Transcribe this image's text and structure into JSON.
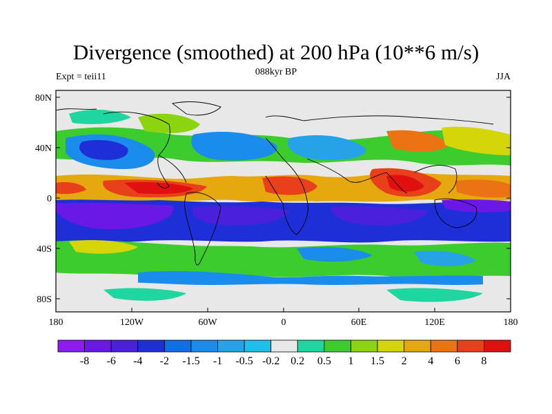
{
  "title": "Divergence (smoothed) at 200 hPa (10**6 m/s)",
  "left_label": "Expt = teii11",
  "center_label": "088kyr BP",
  "right_label": "JJA",
  "axes": {
    "lat_ticks": [
      "80N",
      "40N",
      "0",
      "40S",
      "80S"
    ],
    "lon_ticks": [
      "180",
      "120W",
      "60W",
      "0",
      "60E",
      "120E",
      "180"
    ]
  },
  "colorbar": {
    "labels": [
      "-8",
      "-6",
      "-4",
      "-2",
      "-1.5",
      "-1",
      "-0.5",
      "-0.2",
      "0.2",
      "0.5",
      "1",
      "1.5",
      "2",
      "4",
      "6",
      "8"
    ],
    "colors": [
      "#8C1CF2",
      "#6A18E6",
      "#4A20DC",
      "#1E2FD8",
      "#0F6FE8",
      "#1A8CEB",
      "#26A3E6",
      "#1FBFEB",
      "#E8E8E8",
      "#1FD6A0",
      "#3DCC2E",
      "#8CD40F",
      "#D4D60A",
      "#E6A80F",
      "#EB7314",
      "#E8401A",
      "#E01010"
    ]
  },
  "colors": {
    "neutral": "#E8E8E8",
    "strong_negative": "#5A14E6",
    "strong_positive": "#E01010"
  }
}
